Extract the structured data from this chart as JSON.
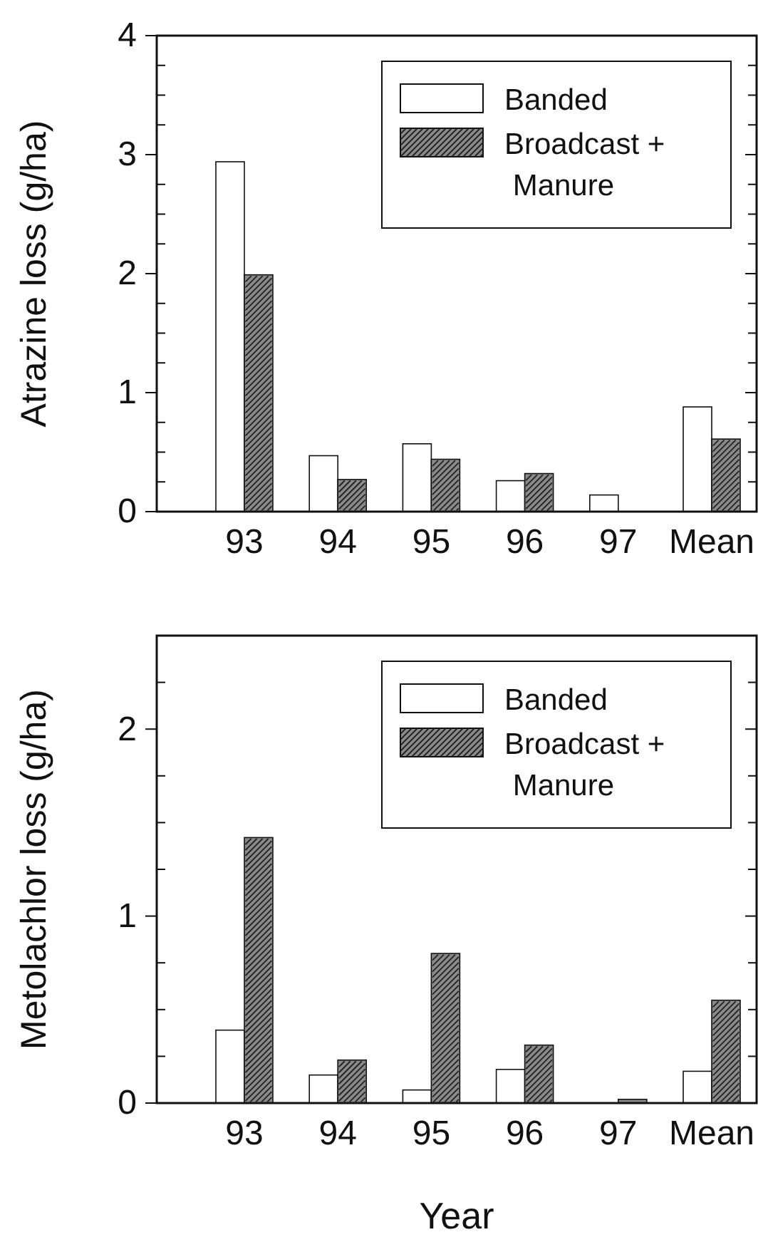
{
  "chart_data": [
    {
      "type": "bar",
      "ylabel": "Atrazine loss (g/ha)",
      "categories": [
        "93",
        "94",
        "95",
        "96",
        "97",
        "Mean"
      ],
      "series": [
        {
          "name": "Banded",
          "color": "#ffffff",
          "values": [
            2.94,
            0.47,
            0.57,
            0.26,
            0.14,
            0.88
          ]
        },
        {
          "name": "Broadcast + Manure",
          "color": "#8a8a8a",
          "values": [
            1.99,
            0.27,
            0.44,
            0.32,
            0,
            0.61
          ]
        }
      ],
      "ylim": [
        0,
        4
      ],
      "yticks": [
        0,
        {
          "value": 0.25,
          "label": null
        },
        {
          "value": 0.5,
          "label": null
        },
        {
          "value": 0.75,
          "label": null
        },
        1,
        {
          "value": 1.25,
          "label": null
        },
        {
          "value": 1.5,
          "label": null
        },
        {
          "value": 1.75,
          "label": null
        },
        2,
        {
          "value": 2.25,
          "label": null
        },
        {
          "value": 2.5,
          "label": null
        },
        {
          "value": 2.75,
          "label": null
        },
        3,
        {
          "value": 3.25,
          "label": null
        },
        {
          "value": 3.5,
          "label": null
        },
        {
          "value": 3.75,
          "label": null
        },
        4
      ],
      "legend": "top right"
    },
    {
      "type": "bar",
      "ylabel": "Metolachlor loss (g/ha)",
      "xlabel": "Year",
      "categories": [
        "93",
        "94",
        "95",
        "96",
        "97",
        "Mean"
      ],
      "series": [
        {
          "name": "Banded",
          "color": "#ffffff",
          "values": [
            0.39,
            0.15,
            0.07,
            0.18,
            0,
            0.17
          ]
        },
        {
          "name": "Broadcast + Manure",
          "color": "#8a8a8a",
          "values": [
            1.42,
            0.23,
            0.8,
            0.31,
            0.02,
            0.55
          ]
        }
      ],
      "ylim": [
        0,
        2.5
      ],
      "yticks": [
        0,
        {
          "value": 0.25,
          "label": null
        },
        {
          "value": 0.5,
          "label": null
        },
        {
          "value": 0.75,
          "label": null
        },
        1,
        {
          "value": 1.25,
          "label": null
        },
        {
          "value": 1.5,
          "label": null
        },
        {
          "value": 1.75,
          "label": null
        },
        2,
        {
          "value": 2.25,
          "label": null
        }
      ],
      "legend": "top right"
    }
  ]
}
